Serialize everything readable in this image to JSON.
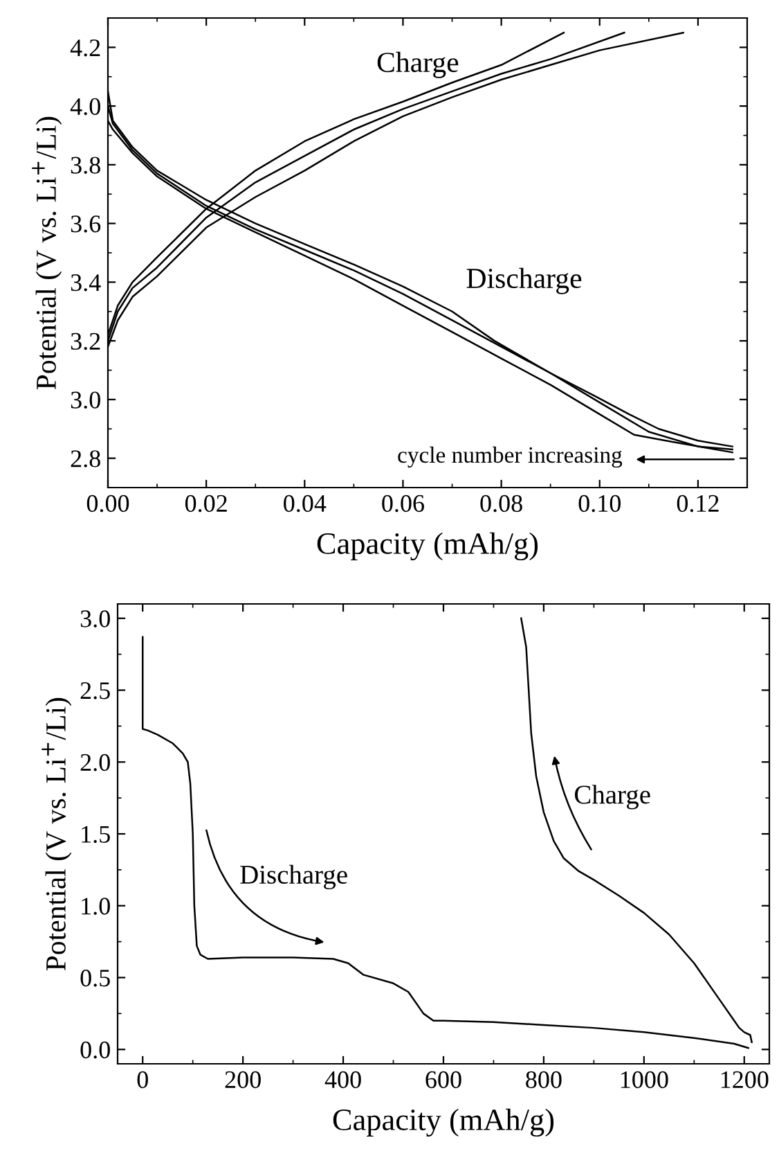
{
  "chart_data": [
    {
      "type": "line",
      "xlabel": "Capacity (mAh/g)",
      "ylabel": "Potential (V vs. Li$^{+}$/Li)",
      "xlim": [
        0,
        0.13
      ],
      "ylim": [
        2.7,
        4.3
      ],
      "xticks": [
        {
          "value": 0,
          "label": "0.00"
        },
        {
          "value": 0.02,
          "label": "0.02"
        },
        {
          "value": 0.04,
          "label": "0.04"
        },
        {
          "value": 0.06,
          "label": "0.06"
        },
        {
          "value": 0.08,
          "label": "0.08"
        },
        {
          "value": 0.1,
          "label": "0.10"
        },
        {
          "value": 0.12,
          "label": "0.12"
        }
      ],
      "yticks": [
        {
          "value": 2.8,
          "label": "2.8"
        },
        {
          "value": 3,
          "label": "3.0"
        },
        {
          "value": 3.2,
          "label": "3.2"
        },
        {
          "value": 3.4,
          "label": "3.4"
        },
        {
          "value": 3.6,
          "label": "3.6"
        },
        {
          "value": 3.8,
          "label": "3.8"
        },
        {
          "value": 4,
          "label": "4.0"
        },
        {
          "value": 4.2,
          "label": "4.2"
        }
      ],
      "grid": false,
      "legend": false,
      "line_style": "solid",
      "marker": "none",
      "annotations": [
        "Charge",
        "Discharge",
        "cycle number increasing"
      ],
      "series": [
        {
          "color": "#000000",
          "x": [
            0,
            0.002,
            0.005,
            0.01,
            0.02,
            0.03,
            0.04,
            0.05,
            0.06,
            0.07,
            0.08,
            0.0927
          ],
          "values": [
            3.22,
            3.32,
            3.4,
            3.485,
            3.65,
            3.78,
            3.88,
            3.955,
            4.015,
            4.08,
            4.14,
            4.25
          ]
        },
        {
          "color": "#000000",
          "x": [
            0,
            0.002,
            0.005,
            0.01,
            0.02,
            0.03,
            0.04,
            0.05,
            0.06,
            0.07,
            0.08,
            0.09,
            0.105
          ],
          "values": [
            3.2,
            3.3,
            3.38,
            3.45,
            3.62,
            3.74,
            3.83,
            3.92,
            3.99,
            4.05,
            4.11,
            4.16,
            4.25
          ]
        },
        {
          "color": "#000000",
          "x": [
            0,
            0.002,
            0.005,
            0.01,
            0.02,
            0.03,
            0.04,
            0.05,
            0.06,
            0.07,
            0.08,
            0.09,
            0.1,
            0.117
          ],
          "values": [
            3.18,
            3.27,
            3.35,
            3.42,
            3.586,
            3.69,
            3.78,
            3.88,
            3.965,
            4.03,
            4.09,
            4.14,
            4.19,
            4.25
          ]
        },
        {
          "color": "#000000",
          "x": [
            0,
            0.001,
            0.005,
            0.01,
            0.02,
            0.03,
            0.04,
            0.05,
            0.06,
            0.07,
            0.0786,
            0.09,
            0.0987,
            0.106,
            0.112,
            0.12,
            0.127
          ],
          "values": [
            4.05,
            3.95,
            3.86,
            3.78,
            3.68,
            3.6,
            3.53,
            3.46,
            3.385,
            3.3,
            3.2,
            3.09,
            3.015,
            2.95,
            2.9,
            2.86,
            2.84
          ]
        },
        {
          "color": "#000000",
          "x": [
            0,
            0.001,
            0.005,
            0.01,
            0.02,
            0.03,
            0.04,
            0.05,
            0.06,
            0.07,
            0.08,
            0.09,
            0.1,
            0.11,
            0.12,
            0.127
          ],
          "values": [
            4.0,
            3.94,
            3.85,
            3.77,
            3.66,
            3.58,
            3.51,
            3.44,
            3.36,
            3.27,
            3.18,
            3.09,
            2.99,
            2.89,
            2.84,
            2.83
          ]
        },
        {
          "color": "#000000",
          "x": [
            0,
            0.001,
            0.005,
            0.01,
            0.02,
            0.03,
            0.04,
            0.05,
            0.06,
            0.07,
            0.08,
            0.09,
            0.1,
            0.107,
            0.115,
            0.127
          ],
          "values": [
            3.95,
            3.92,
            3.84,
            3.76,
            3.65,
            3.57,
            3.49,
            3.41,
            3.32,
            3.23,
            3.14,
            3.05,
            2.95,
            2.88,
            2.855,
            2.82
          ]
        }
      ]
    },
    {
      "type": "line",
      "xlabel": "Capacity (mAh/g)",
      "ylabel": "Potential (V vs. Li$^{+}$/Li)",
      "xlim": [
        -50,
        1250
      ],
      "ylim": [
        -0.1,
        3.1
      ],
      "xticks": [
        0,
        200,
        400,
        600,
        800,
        1000,
        1200
      ],
      "yticks": [
        {
          "value": 0,
          "label": "0.0"
        },
        {
          "value": 0.5,
          "label": "0.5"
        },
        {
          "value": 1,
          "label": "1.0"
        },
        {
          "value": 1.5,
          "label": "1.5"
        },
        {
          "value": 2,
          "label": "2.0"
        },
        {
          "value": 2.5,
          "label": "2.5"
        },
        {
          "value": 3,
          "label": "3.0"
        }
      ],
      "grid": false,
      "legend": false,
      "line_style": "solid",
      "marker": "none",
      "annotations": [
        "Discharge",
        "Charge"
      ],
      "series": [
        {
          "color": "#000000",
          "x": [
            0,
            0,
            10,
            30,
            60,
            80,
            90,
            95,
            100,
            103,
            108,
            115,
            130,
            200,
            300,
            380,
            410,
            440,
            500,
            530,
            560,
            580,
            600,
            700,
            800,
            900,
            1000,
            1100,
            1180,
            1208
          ],
          "values": [
            2.87,
            2.23,
            2.22,
            2.19,
            2.13,
            2.06,
            2.0,
            1.85,
            1.5,
            1.0,
            0.72,
            0.66,
            0.63,
            0.64,
            0.64,
            0.63,
            0.6,
            0.52,
            0.46,
            0.4,
            0.25,
            0.2,
            0.2,
            0.19,
            0.17,
            0.15,
            0.12,
            0.08,
            0.04,
            0.01
          ]
        },
        {
          "color": "#000000",
          "x": [
            1215,
            1212,
            1200,
            1190,
            1180,
            1150,
            1100,
            1050,
            1000,
            950,
            900,
            870,
            840,
            820,
            800,
            785,
            775,
            770,
            765,
            755
          ],
          "values": [
            0.05,
            0.1,
            0.12,
            0.15,
            0.2,
            0.35,
            0.6,
            0.8,
            0.95,
            1.07,
            1.18,
            1.24,
            1.33,
            1.45,
            1.65,
            1.9,
            2.2,
            2.5,
            2.8,
            3.0
          ]
        }
      ]
    }
  ]
}
